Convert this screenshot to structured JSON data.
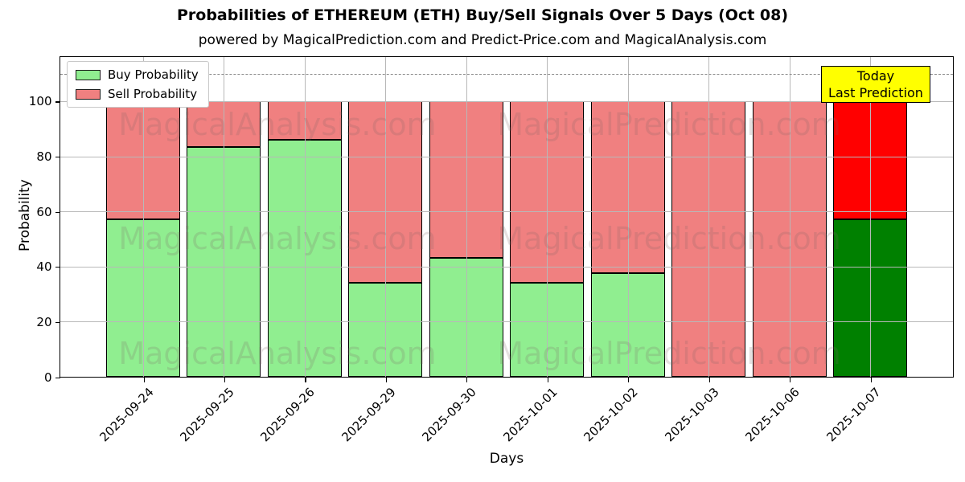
{
  "title": "Probabilities of ETHEREUM (ETH) Buy/Sell Signals Over 5 Days (Oct 08)",
  "subtitle": "powered by MagicalPrediction.com and Predict-Price.com and MagicalAnalysis.com",
  "chart_data": {
    "type": "bar",
    "stacked": true,
    "categories": [
      "2025-09-24",
      "2025-09-25",
      "2025-09-26",
      "2025-09-29",
      "2025-09-30",
      "2025-10-01",
      "2025-10-02",
      "2025-10-03",
      "2025-10-06",
      "2025-10-07"
    ],
    "series": [
      {
        "name": "Buy Probability",
        "values": [
          57,
          83.5,
          86,
          34,
          43,
          34,
          37.5,
          0,
          0,
          57
        ],
        "color": "#90EE90",
        "today_color": "#008000"
      },
      {
        "name": "Sell Probability",
        "values": [
          43,
          16.5,
          14,
          66,
          57,
          66,
          62.5,
          100,
          100,
          43
        ],
        "color": "#F08080",
        "today_color": "#FF0000"
      }
    ],
    "today_index": 9,
    "xlabel": "Days",
    "ylabel": "Probability",
    "ylim": [
      0,
      116
    ],
    "yticks": [
      0,
      20,
      40,
      60,
      80,
      100
    ],
    "dashed_line_y": 110,
    "grid": true,
    "legend_position": "upper-left"
  },
  "annotation": {
    "lines": [
      "Today",
      "Last Prediction"
    ],
    "bg_color": "#FFFF00"
  },
  "watermarks": {
    "left": "MagicalAnalysis.com",
    "right": "MagicalPrediction.com"
  },
  "colors": {
    "grid": "#b8b8b8",
    "dashed_line": "#8a8a8a",
    "bar_edge": "#000000"
  }
}
